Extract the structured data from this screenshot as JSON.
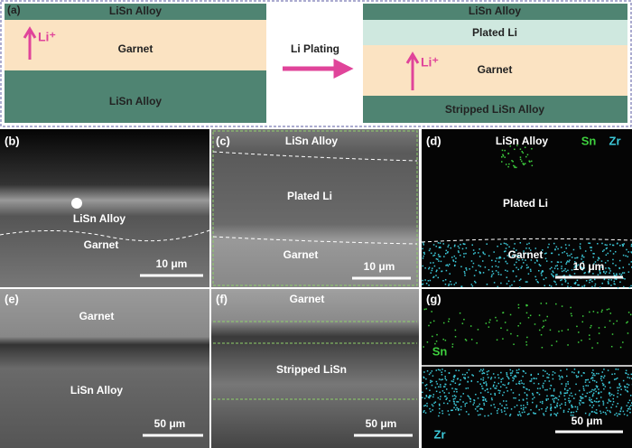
{
  "panel_a": {
    "label": "(a)",
    "left_layers": [
      "LiSn Alloy",
      "Garnet",
      "LiSn Alloy"
    ],
    "ion": "Li⁺",
    "process": "Li Plating",
    "right_layers": [
      "LiSn Alloy",
      "Plated Li",
      "Garnet",
      "Stripped LiSn Alloy"
    ],
    "right_ion": "Li⁺"
  },
  "panel_b": {
    "label": "(b)",
    "texts": [
      "LiSn Alloy",
      "Garnet"
    ],
    "scale": "10 μm"
  },
  "panel_c": {
    "label": "(c)",
    "texts": [
      "LiSn Alloy",
      "Plated Li",
      "Garnet"
    ],
    "scale": "10 μm"
  },
  "panel_d": {
    "label": "(d)",
    "texts": [
      "LiSn Alloy",
      "Plated Li",
      "Garnet"
    ],
    "legend": [
      "Sn",
      "Zr"
    ],
    "scale": "10 μm"
  },
  "panel_e": {
    "label": "(e)",
    "texts": [
      "Garnet",
      "LiSn Alloy"
    ],
    "scale": "50 μm"
  },
  "panel_f": {
    "label": "(f)",
    "texts": [
      "Garnet",
      "Stripped LiSn"
    ],
    "scale": "50 μm"
  },
  "panel_g": {
    "label": "(g)",
    "legend": [
      "Sn",
      "Zr"
    ],
    "scale": "50 μm"
  }
}
